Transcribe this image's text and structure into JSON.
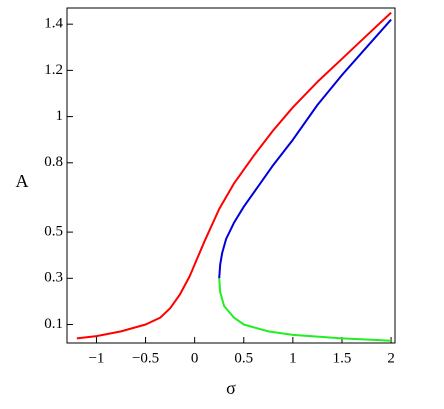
{
  "chart_data": {
    "type": "line",
    "x_label": "σ",
    "y_label": "A",
    "xlim": [
      -1.3,
      2.04
    ],
    "ylim": [
      0.02,
      1.47
    ],
    "xticks": [
      {
        "value": -1,
        "label": "−1"
      },
      {
        "value": -0.5,
        "label": "−0.5"
      },
      0,
      0.5,
      1,
      1.5,
      2
    ],
    "yticks": [
      0.1,
      0.3,
      0.5,
      0.8,
      1,
      1.2,
      1.4
    ],
    "series": [
      {
        "color": "#ff0000",
        "x": [
          -1.2,
          -1,
          -0.75,
          -0.5,
          -0.35,
          -0.25,
          -0.15,
          -0.05,
          0,
          0.1,
          0.25,
          0.4,
          0.6,
          0.8,
          1,
          1.25,
          1.5,
          1.75,
          2
        ],
        "values": [
          0.04,
          0.05,
          0.07,
          0.1,
          0.13,
          0.17,
          0.23,
          0.31,
          0.36,
          0.46,
          0.6,
          0.71,
          0.83,
          0.94,
          1.04,
          1.15,
          1.25,
          1.35,
          1.45
        ]
      },
      {
        "color": "#0000dd",
        "x": [
          0.25,
          0.26,
          0.28,
          0.32,
          0.4,
          0.5,
          0.65,
          0.8,
          1,
          1.25,
          1.5,
          1.75,
          2
        ],
        "values": [
          0.3,
          0.36,
          0.41,
          0.47,
          0.54,
          0.61,
          0.7,
          0.79,
          0.9,
          1.05,
          1.18,
          1.3,
          1.42
        ]
      },
      {
        "color": "#22ee22",
        "x": [
          0.25,
          0.26,
          0.3,
          0.4,
          0.5,
          0.75,
          1,
          1.5,
          2
        ],
        "values": [
          0.3,
          0.24,
          0.18,
          0.13,
          0.1,
          0.07,
          0.055,
          0.04,
          0.03
        ]
      }
    ]
  }
}
